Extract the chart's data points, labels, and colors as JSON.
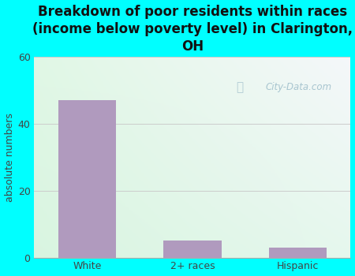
{
  "categories": [
    "White",
    "2+ races",
    "Hispanic"
  ],
  "values": [
    47,
    5,
    3
  ],
  "bar_color": "#b09abe",
  "title": "Breakdown of poor residents within races\n(income below poverty level) in Clarington,\nOH",
  "ylabel": "absolute numbers",
  "ylim": [
    0,
    60
  ],
  "yticks": [
    0,
    20,
    40,
    60
  ],
  "title_fontsize": 12,
  "ylabel_fontsize": 9,
  "tick_fontsize": 9,
  "title_color": "#111111",
  "tick_color": "#444444",
  "background_outer": "#00ffff",
  "watermark": "City-Data.com",
  "grid_color": "#cccccc",
  "bar_width": 0.55
}
